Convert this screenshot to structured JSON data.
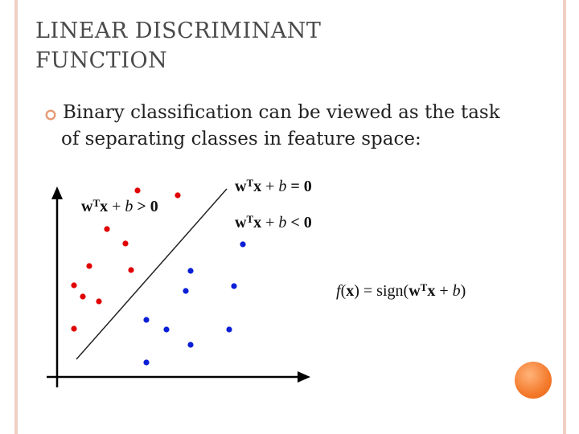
{
  "slide": {
    "title_line1": "LINEAR DISCRIMINANT",
    "title_line2": "FUNCTION",
    "bullet_line1": "Binary classification can be viewed as the task",
    "bullet_line2": "of separating classes in feature space:"
  },
  "equations": {
    "positive": {
      "w": "w",
      "T": "T",
      "x": "x",
      "plus": " + ",
      "b": "b",
      "rest": " > 0"
    },
    "boundary": {
      "w": "w",
      "T": "T",
      "x": "x",
      "plus": " + ",
      "b": "b",
      "rest": " = 0"
    },
    "negative": {
      "w": "w",
      "T": "T",
      "x": "x",
      "plus": " + ",
      "b": "b",
      "rest": " < 0"
    },
    "decision": {
      "f": "f",
      "open": "(",
      "x": "x",
      "mid": ") = sign(",
      "w": "w",
      "T": "T",
      "x2": "x",
      "plus": " + ",
      "b": "b",
      "close": ")"
    }
  },
  "colors": {
    "red_class": "#e00000",
    "blue_class": "#0a1fd6",
    "border": "#f0cfc3",
    "accent_circle": "#f47a2c"
  },
  "icons": {
    "bullet": "hollow-circle-bullet-icon"
  }
}
